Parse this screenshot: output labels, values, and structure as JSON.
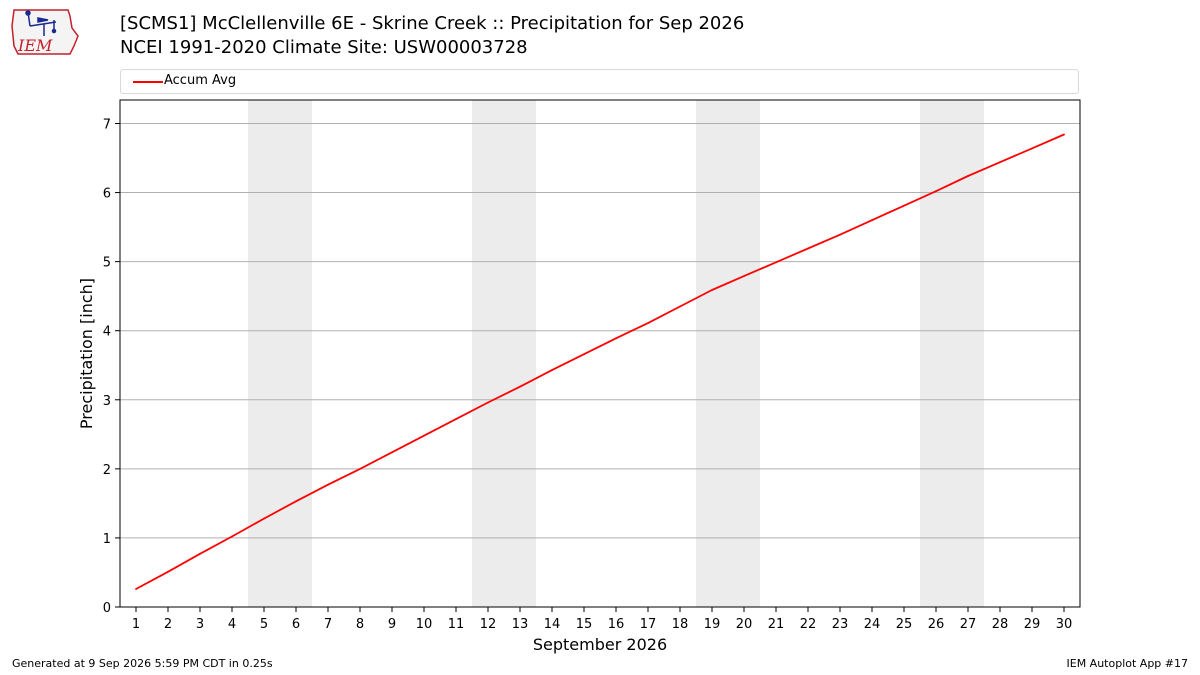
{
  "header": {
    "logo_text": "IEM",
    "title_line1": "[SCMS1] McClellenville 6E - Skrine Creek :: Precipitation for Sep 2026",
    "title_line2": "NCEI 1991-2020 Climate Site: USW00003728"
  },
  "legend": {
    "entries": [
      {
        "label": "Accum Avg",
        "color": "#ff0000"
      }
    ]
  },
  "footer": {
    "left": "Generated at 9 Sep 2026 5:59 PM CDT in 0.25s",
    "right": "IEM Autoplot App #17"
  },
  "chart_data": {
    "type": "line",
    "xlabel": "September 2026",
    "ylabel": "Precipitation [inch]",
    "xlim": [
      0.5,
      30.5
    ],
    "ylim": [
      0,
      7.34
    ],
    "yticks": [
      0,
      1,
      2,
      3,
      4,
      5,
      6,
      7
    ],
    "x": [
      1,
      2,
      3,
      4,
      5,
      6,
      7,
      8,
      9,
      10,
      11,
      12,
      13,
      14,
      15,
      16,
      17,
      18,
      19,
      20,
      21,
      22,
      23,
      24,
      25,
      26,
      27,
      28,
      29,
      30
    ],
    "grid_y": true,
    "weekend_shading": [
      [
        4.5,
        6.5
      ],
      [
        11.5,
        13.5
      ],
      [
        18.5,
        20.5
      ],
      [
        25.5,
        27.5
      ]
    ],
    "shade_color": "#ececec",
    "series": [
      {
        "name": "Accum Avg",
        "color": "#ff0000",
        "values": [
          0.26,
          0.51,
          0.77,
          1.02,
          1.28,
          1.53,
          1.77,
          2.0,
          2.24,
          2.48,
          2.72,
          2.96,
          3.19,
          3.43,
          3.66,
          3.89,
          4.11,
          4.35,
          4.59,
          4.79,
          4.99,
          5.19,
          5.39,
          5.6,
          5.81,
          6.02,
          6.24,
          6.44,
          6.64,
          6.84
        ]
      }
    ]
  }
}
